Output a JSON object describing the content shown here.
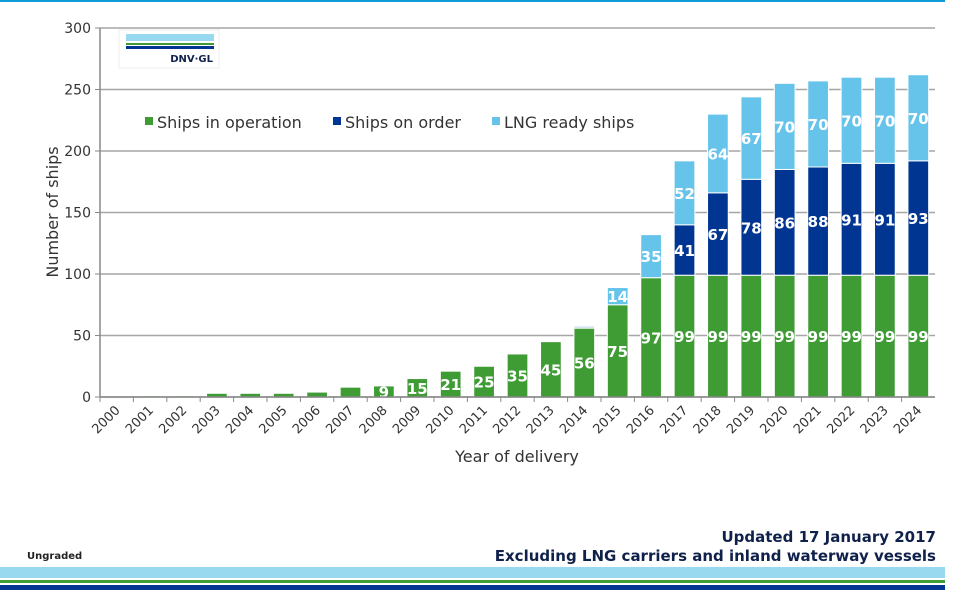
{
  "chart_data": {
    "type": "bar",
    "stacked": true,
    "categories": [
      "2000",
      "2001",
      "2002",
      "2003",
      "2004",
      "2005",
      "2006",
      "2007",
      "2008",
      "2009",
      "2010",
      "2011",
      "2012",
      "2013",
      "2014",
      "2015",
      "2016",
      "2017",
      "2018",
      "2019",
      "2020",
      "2021",
      "2022",
      "2023",
      "2024"
    ],
    "series": [
      {
        "name": "Ships in operation",
        "color": "#3f9c35",
        "values": [
          0,
          1,
          1,
          3,
          3,
          3,
          4,
          8,
          9,
          15,
          21,
          25,
          35,
          45,
          56,
          75,
          97,
          99,
          99,
          99,
          99,
          99,
          99,
          99,
          99
        ]
      },
      {
        "name": "Ships on order",
        "color": "#003591",
        "values": [
          0,
          0,
          0,
          0,
          0,
          0,
          0,
          0,
          0,
          0,
          0,
          0,
          0,
          0,
          1,
          0,
          0,
          41,
          67,
          78,
          86,
          88,
          91,
          91,
          93
        ]
      },
      {
        "name": "LNG ready ships",
        "color": "#66c3ea",
        "values": [
          0,
          0,
          0,
          0,
          0,
          0,
          0,
          0,
          0,
          0,
          0,
          0,
          0,
          0,
          1,
          14,
          35,
          52,
          64,
          67,
          70,
          70,
          70,
          70,
          70
        ]
      }
    ],
    "xlabel": "Year of delivery",
    "ylabel": "Number of ships",
    "ylim": [
      0,
      300
    ],
    "yticks": [
      "0",
      "50",
      "100",
      "150",
      "200",
      "250",
      "300"
    ],
    "grid": true,
    "legend": "top-left"
  },
  "logo": "DNV·GL",
  "footer": {
    "updated": "Updated 17 January 2017",
    "note": "Excluding LNG carriers and inland waterway vessels",
    "classification": "Ungraded"
  }
}
